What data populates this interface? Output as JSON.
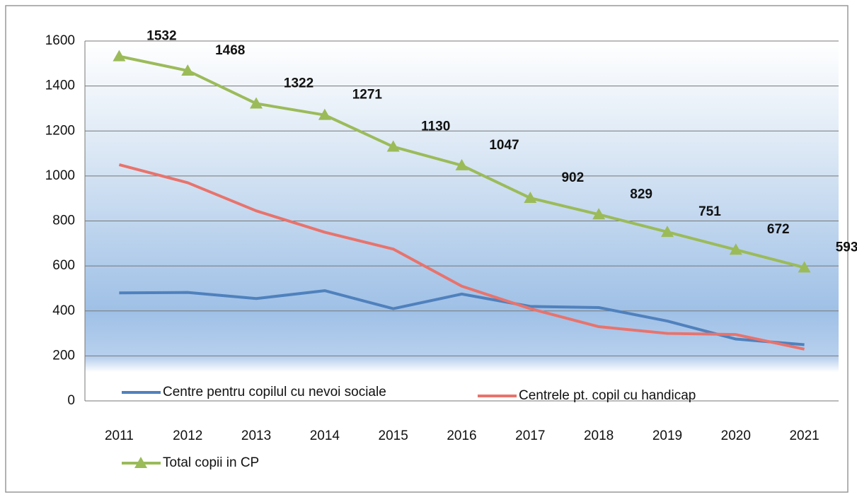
{
  "chart_data": {
    "type": "line",
    "categories": [
      "2011",
      "2012",
      "2013",
      "2014",
      "2015",
      "2016",
      "2017",
      "2018",
      "2019",
      "2020",
      "2021"
    ],
    "series": [
      {
        "name": "Centre pentru copilul cu nevoi sociale",
        "color": "#4f81bd",
        "values": [
          480,
          482,
          455,
          490,
          410,
          475,
          420,
          415,
          355,
          275,
          250
        ]
      },
      {
        "name": "Centrele pt. copil cu handicap",
        "color": "#e8736c",
        "values": [
          1050,
          970,
          845,
          750,
          675,
          510,
          410,
          330,
          300,
          295,
          230
        ]
      },
      {
        "name": "Total copii in CP",
        "color": "#9bbb59",
        "values": [
          1532,
          1468,
          1322,
          1271,
          1130,
          1047,
          902,
          829,
          751,
          672,
          593
        ],
        "marker": "triangle",
        "data_labels": true
      }
    ],
    "ylim": [
      0,
      1600
    ],
    "yticks": [
      0,
      200,
      400,
      600,
      800,
      1000,
      1200,
      1400,
      1600
    ],
    "grid": true
  }
}
